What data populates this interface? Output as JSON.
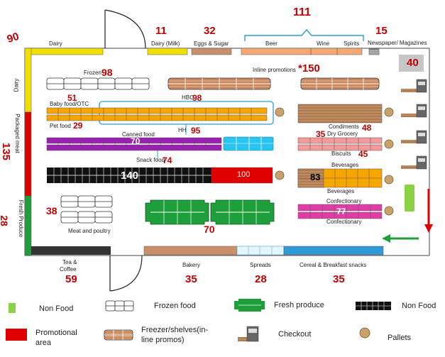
{
  "numbers": {
    "n90": "90",
    "n11": "11",
    "n32": "32",
    "n111": "111",
    "n15": "15",
    "n40": "40",
    "n98a": "98",
    "n150": "*150",
    "n51": "51",
    "n98b": "98",
    "n29": "29",
    "n95": "95",
    "n70a": "70",
    "n74": "74",
    "n140": "140",
    "n100": "100",
    "n135": "135",
    "n35a": "35",
    "n48": "48",
    "n45": "45",
    "n83": "83",
    "n77": "77",
    "n38": "38",
    "n70b": "70",
    "n28a": "28",
    "n59": "59",
    "n35b": "35",
    "n28b": "28",
    "n35c": "35"
  },
  "labels": {
    "dairy_top": "Dairy",
    "dairy_milk": "Dairy (Milk)",
    "eggs_sugar": "Eggs & Sugar",
    "beer": "Beer",
    "wine": "Wine",
    "spirits": "Spirits",
    "newspaper": "Newspaper/ Magazines",
    "dairy_left": "Dairy",
    "packaged_meat": "Packaged meat",
    "fresh_produce_left": "Fresh Produce",
    "frozen": "Frozen",
    "inline_promotions": "Inline promotions",
    "hbc": "HBC",
    "baby_food": "Baby food/OTC",
    "pet_food": "Pet food",
    "hh": "HH",
    "canned_food": "Canned food",
    "snack_food": "Snack food",
    "condiments": "Condiments",
    "dry_grocery": "Dry Grocery",
    "biscuits": "Biscuits",
    "beverages_top": "Beverages",
    "beverages_bottom": "Beverages",
    "confectionary_top": "Confectionary",
    "confectionary_bottom": "Confectionary",
    "meat_poultry": "Meat and poultry",
    "tea_coffee_1": "Tea &",
    "tea_coffee_2": "Coffee",
    "bakery": "Bakery",
    "spreads": "Spreads",
    "cereal": "Cereal & Breakfast snacks"
  },
  "legend": {
    "non_food_1": "Non Food",
    "frozen_food": "Frozen food",
    "fresh_produce": "Fresh produce",
    "non_food_2": "Non Food",
    "promotional_1": "Promotional",
    "promotional_2": "area",
    "freezer_1": "Freezer/shelves(in-",
    "freezer_2": "line promos)",
    "checkout": "Checkout",
    "pallets": "Pallets"
  },
  "colors": {
    "yellow": "#f0e000",
    "red": "#e00000",
    "green": "#1f9e3c",
    "orange": "#f7a600",
    "blue": "#2e9bd6",
    "brown": "#c98f6b",
    "purple": "#9b1fb0",
    "pink": "#f59a9a",
    "magenta": "#e03ea7",
    "lightblue": "#29c4f0",
    "lightgreen": "#8bd146",
    "darkgray": "#555555"
  }
}
